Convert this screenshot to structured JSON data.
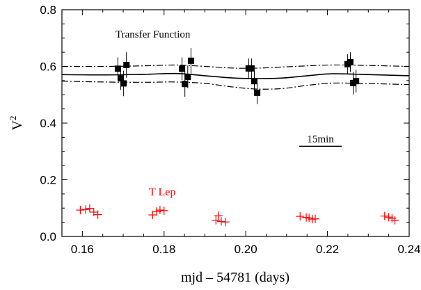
{
  "chart_data": {
    "type": "scatter",
    "title": "",
    "xlabel": "mjd – 54781  (days)",
    "ylabel": "V",
    "ylabel_superscript": "2",
    "xlim": [
      0.155,
      0.24
    ],
    "ylim": [
      0.0,
      0.8
    ],
    "grid": false,
    "x_ticks": [
      0.16,
      0.18,
      0.2,
      0.22,
      0.24
    ],
    "x_tick_labels": [
      "0.16",
      "0.18",
      "0.20",
      "0.22",
      "0.24"
    ],
    "y_ticks": [
      0.0,
      0.2,
      0.4,
      0.6,
      0.8
    ],
    "y_tick_labels": [
      "0.0",
      "0.2",
      "0.4",
      "0.6",
      "0.8"
    ],
    "annotations": {
      "transfer_label": "Transfer Function",
      "target_label": "T Lep",
      "scale_bar_label": "15min",
      "scale_bar_x": [
        0.2131,
        0.2235
      ],
      "scale_bar_y": 0.318
    },
    "series": [
      {
        "name": "Transfer Function",
        "marker": "square",
        "color": "#000000",
        "points": [
          {
            "x": 0.1687,
            "y": 0.592,
            "err": 0.04
          },
          {
            "x": 0.1694,
            "y": 0.558,
            "err": 0.04
          },
          {
            "x": 0.1701,
            "y": 0.54,
            "err": 0.045
          },
          {
            "x": 0.1708,
            "y": 0.605,
            "err": 0.045
          },
          {
            "x": 0.1844,
            "y": 0.592,
            "err": 0.04
          },
          {
            "x": 0.1851,
            "y": 0.538,
            "err": 0.045
          },
          {
            "x": 0.1858,
            "y": 0.563,
            "err": 0.04
          },
          {
            "x": 0.1866,
            "y": 0.62,
            "err": 0.045
          },
          {
            "x": 0.2007,
            "y": 0.593,
            "err": 0.035
          },
          {
            "x": 0.2014,
            "y": 0.593,
            "err": 0.035
          },
          {
            "x": 0.2021,
            "y": 0.548,
            "err": 0.04
          },
          {
            "x": 0.2028,
            "y": 0.507,
            "err": 0.04
          },
          {
            "x": 0.2249,
            "y": 0.608,
            "err": 0.035
          },
          {
            "x": 0.2256,
            "y": 0.615,
            "err": 0.035
          },
          {
            "x": 0.2263,
            "y": 0.541,
            "err": 0.04
          },
          {
            "x": 0.227,
            "y": 0.548,
            "err": 0.04
          }
        ]
      },
      {
        "name": "T Lep",
        "marker": "plus",
        "color": "#ff0000",
        "points": [
          {
            "x": 0.1595,
            "y": 0.093
          },
          {
            "x": 0.1608,
            "y": 0.095
          },
          {
            "x": 0.1618,
            "y": 0.099
          },
          {
            "x": 0.1628,
            "y": 0.086
          },
          {
            "x": 0.1638,
            "y": 0.077
          },
          {
            "x": 0.1772,
            "y": 0.076
          },
          {
            "x": 0.1782,
            "y": 0.088
          },
          {
            "x": 0.179,
            "y": 0.093
          },
          {
            "x": 0.18,
            "y": 0.091
          },
          {
            "x": 0.1927,
            "y": 0.057
          },
          {
            "x": 0.1933,
            "y": 0.073
          },
          {
            "x": 0.194,
            "y": 0.053
          },
          {
            "x": 0.195,
            "y": 0.051
          },
          {
            "x": 0.2133,
            "y": 0.071
          },
          {
            "x": 0.2148,
            "y": 0.067
          },
          {
            "x": 0.2155,
            "y": 0.065
          },
          {
            "x": 0.2163,
            "y": 0.061
          },
          {
            "x": 0.217,
            "y": 0.062
          },
          {
            "x": 0.234,
            "y": 0.072
          },
          {
            "x": 0.235,
            "y": 0.068
          },
          {
            "x": 0.2358,
            "y": 0.064
          },
          {
            "x": 0.2365,
            "y": 0.057
          }
        ]
      }
    ],
    "curves": [
      {
        "name": "transfer-mean",
        "style": "solid",
        "points": [
          [
            0.155,
            0.571
          ],
          [
            0.165,
            0.57
          ],
          [
            0.175,
            0.572
          ],
          [
            0.183,
            0.575
          ],
          [
            0.19,
            0.567
          ],
          [
            0.197,
            0.559
          ],
          [
            0.203,
            0.557
          ],
          [
            0.209,
            0.559
          ],
          [
            0.215,
            0.567
          ],
          [
            0.221,
            0.574
          ],
          [
            0.228,
            0.572
          ],
          [
            0.24,
            0.567
          ]
        ]
      },
      {
        "name": "transfer-upper",
        "style": "dashdot",
        "points": [
          [
            0.155,
            0.6
          ],
          [
            0.165,
            0.6
          ],
          [
            0.175,
            0.602
          ],
          [
            0.183,
            0.605
          ],
          [
            0.19,
            0.6
          ],
          [
            0.197,
            0.594
          ],
          [
            0.203,
            0.594
          ],
          [
            0.209,
            0.598
          ],
          [
            0.215,
            0.602
          ],
          [
            0.221,
            0.605
          ],
          [
            0.228,
            0.604
          ],
          [
            0.24,
            0.6
          ]
        ]
      },
      {
        "name": "transfer-lower",
        "style": "dashdot",
        "points": [
          [
            0.155,
            0.548
          ],
          [
            0.165,
            0.545
          ],
          [
            0.175,
            0.544
          ],
          [
            0.183,
            0.545
          ],
          [
            0.19,
            0.54
          ],
          [
            0.197,
            0.527
          ],
          [
            0.203,
            0.52
          ],
          [
            0.209,
            0.522
          ],
          [
            0.215,
            0.533
          ],
          [
            0.221,
            0.541
          ],
          [
            0.228,
            0.54
          ],
          [
            0.24,
            0.536
          ]
        ]
      }
    ]
  }
}
